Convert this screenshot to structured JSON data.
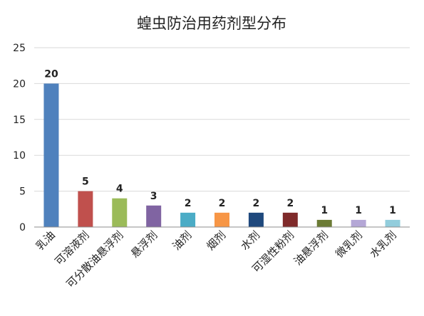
{
  "chart_data": {
    "type": "bar",
    "title": "蝗虫防治用药剂型分布",
    "categories": [
      "乳油",
      "可溶液剂",
      "可分散油悬浮剂",
      "悬浮剂",
      "油剂",
      "烟剂",
      "水剂",
      "可湿性粉剂",
      "油悬浮剂",
      "微乳剂",
      "水乳剂"
    ],
    "values": [
      20,
      5,
      4,
      3,
      2,
      2,
      2,
      2,
      1,
      1,
      1
    ],
    "colors": [
      "#4F81BD",
      "#C0504D",
      "#9BBB59",
      "#8064A2",
      "#4BACC6",
      "#F79646",
      "#1F497D",
      "#7F2A2A",
      "#6B7B35",
      "#B4A7D6",
      "#92CDDC"
    ],
    "ylim": [
      0,
      25
    ],
    "yticks": [
      "0",
      "5",
      "10",
      "15",
      "20",
      "25"
    ],
    "grid": true
  }
}
